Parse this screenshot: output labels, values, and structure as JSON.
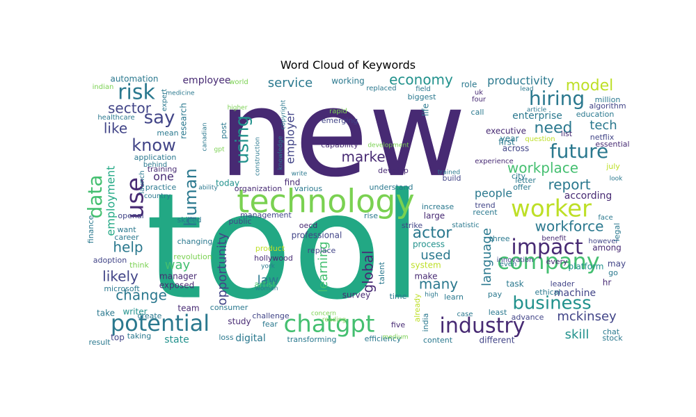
{
  "title": "Word Cloud of Keywords",
  "palette": {
    "dark": "#472a73",
    "green": "#22a884",
    "teal": "#2a788e",
    "lime": "#7ad151",
    "yellow": "#bddf26",
    "blue": "#414487",
    "lightgreen": "#44bf70",
    "midteal": "#21918c"
  },
  "words": [
    {
      "text": "new",
      "c": "dark"
    },
    {
      "text": "tool",
      "c": "green"
    },
    {
      "text": "technology",
      "c": "lime"
    },
    {
      "text": "worker",
      "c": "yellow"
    },
    {
      "text": "company",
      "c": "lightgreen"
    },
    {
      "text": "chatgpt",
      "c": "lightgreen"
    },
    {
      "text": "potential",
      "c": "teal"
    },
    {
      "text": "industry",
      "c": "dark"
    },
    {
      "text": "impact",
      "c": "dark"
    },
    {
      "text": "business",
      "c": "midteal"
    },
    {
      "text": "future",
      "c": "teal"
    },
    {
      "text": "hiring",
      "c": "teal"
    },
    {
      "text": "risk",
      "c": "teal"
    },
    {
      "text": "data",
      "c": "lightgreen"
    },
    {
      "text": "use",
      "c": "dark"
    },
    {
      "text": "know",
      "c": "blue"
    },
    {
      "text": "say",
      "c": "blue"
    },
    {
      "text": "human",
      "c": "teal"
    },
    {
      "text": "using",
      "c": "midteal"
    },
    {
      "text": "workplace",
      "c": "lightgreen"
    },
    {
      "text": "workforce",
      "c": "teal"
    },
    {
      "text": "report",
      "c": "teal"
    },
    {
      "text": "need",
      "c": "teal"
    },
    {
      "text": "model",
      "c": "yellow"
    },
    {
      "text": "economy",
      "c": "midteal"
    },
    {
      "text": "market",
      "c": "dark"
    },
    {
      "text": "change",
      "c": "teal"
    },
    {
      "text": "likely",
      "c": "blue"
    },
    {
      "text": "help",
      "c": "teal"
    },
    {
      "text": "many",
      "c": "teal"
    },
    {
      "text": "actor",
      "c": "teal"
    },
    {
      "text": "law",
      "c": "teal"
    },
    {
      "text": "mckinsey",
      "c": "blue"
    },
    {
      "text": "skill",
      "c": "midteal"
    },
    {
      "text": "like",
      "c": "blue"
    },
    {
      "text": "sector",
      "c": "blue"
    },
    {
      "text": "tech",
      "c": "teal"
    },
    {
      "text": "service",
      "c": "teal"
    },
    {
      "text": "productivity",
      "c": "teal"
    },
    {
      "text": "employment",
      "c": "green"
    },
    {
      "text": "opportunity",
      "c": "blue"
    },
    {
      "text": "learning",
      "c": "lightgreen"
    },
    {
      "text": "global",
      "c": "dark"
    },
    {
      "text": "language",
      "c": "teal"
    },
    {
      "text": "employer",
      "c": "blue"
    },
    {
      "text": "people",
      "c": "teal"
    },
    {
      "text": "according",
      "c": "dark"
    },
    {
      "text": "enterprise",
      "c": "teal"
    },
    {
      "text": "used",
      "c": "teal"
    },
    {
      "text": "way",
      "c": "lightgreen"
    },
    {
      "text": "machine",
      "c": "blue"
    },
    {
      "text": "state",
      "c": "midteal"
    },
    {
      "text": "digital",
      "c": "teal"
    },
    {
      "text": "one",
      "c": "dark"
    },
    {
      "text": "employee",
      "c": "dark"
    },
    {
      "text": "automation",
      "c": "teal"
    },
    {
      "text": "year",
      "c": "teal"
    },
    {
      "text": "across",
      "c": "blue"
    },
    {
      "text": "role",
      "c": "teal"
    },
    {
      "text": "working",
      "c": "teal"
    },
    {
      "text": "application",
      "c": "teal"
    },
    {
      "text": "research",
      "c": "teal"
    },
    {
      "text": "study",
      "c": "dark"
    },
    {
      "text": "today",
      "c": "midteal"
    },
    {
      "text": "large",
      "c": "dark"
    },
    {
      "text": "professional",
      "c": "blue"
    },
    {
      "text": "find",
      "c": "dark"
    },
    {
      "text": "survey",
      "c": "dark"
    },
    {
      "text": "make",
      "c": "dark"
    },
    {
      "text": "task",
      "c": "teal"
    },
    {
      "text": "team",
      "c": "dark"
    },
    {
      "text": "top",
      "c": "blue"
    },
    {
      "text": "take",
      "c": "teal"
    },
    {
      "text": "writer",
      "c": "midteal"
    },
    {
      "text": "manager",
      "c": "dark"
    },
    {
      "text": "exposed",
      "c": "dark"
    },
    {
      "text": "system",
      "c": "yellow"
    },
    {
      "text": "different",
      "c": "blue"
    },
    {
      "text": "process",
      "c": "midteal"
    },
    {
      "text": "may",
      "c": "blue"
    },
    {
      "text": "among",
      "c": "dark"
    },
    {
      "text": "artist",
      "c": "lightgreen"
    },
    {
      "text": "hollywood",
      "c": "dark"
    },
    {
      "text": "replace",
      "c": "blue"
    },
    {
      "text": "career",
      "c": "teal"
    },
    {
      "text": "openai",
      "c": "blue"
    },
    {
      "text": "skilled",
      "c": "teal"
    },
    {
      "text": "want",
      "c": "teal"
    },
    {
      "text": "strike",
      "c": "blue"
    },
    {
      "text": "already",
      "c": "yellow"
    },
    {
      "text": "product",
      "c": "yellow"
    },
    {
      "text": "understand",
      "c": "teal"
    },
    {
      "text": "develop",
      "c": "dark"
    },
    {
      "text": "build",
      "c": "blue"
    },
    {
      "text": "emerging",
      "c": "blue"
    },
    {
      "text": "capability",
      "c": "dark"
    },
    {
      "text": "netflix",
      "c": "blue"
    },
    {
      "text": "education",
      "c": "teal"
    },
    {
      "text": "million",
      "c": "teal"
    },
    {
      "text": "algorithm",
      "c": "blue"
    },
    {
      "text": "essential",
      "c": "dark"
    },
    {
      "text": "hr",
      "c": "dark"
    },
    {
      "text": "platform",
      "c": "midteal"
    },
    {
      "text": "every",
      "c": "dark"
    },
    {
      "text": "leader",
      "c": "blue"
    },
    {
      "text": "ethical",
      "c": "teal"
    },
    {
      "text": "pay",
      "c": "teal"
    },
    {
      "text": "least",
      "c": "teal"
    },
    {
      "text": "advance",
      "c": "blue"
    },
    {
      "text": "learn",
      "c": "teal"
    },
    {
      "text": "content",
      "c": "teal"
    },
    {
      "text": "efficiency",
      "c": "teal"
    },
    {
      "text": "five",
      "c": "dark"
    },
    {
      "text": "india",
      "c": "teal"
    },
    {
      "text": "time",
      "c": "teal"
    },
    {
      "text": "talent",
      "c": "teal"
    },
    {
      "text": "rise",
      "c": "teal"
    },
    {
      "text": "oecd",
      "c": "dark"
    },
    {
      "text": "various",
      "c": "teal"
    },
    {
      "text": "organization",
      "c": "dark"
    },
    {
      "text": "management",
      "c": "blue"
    },
    {
      "text": "public",
      "c": "blue"
    },
    {
      "text": "changing",
      "c": "teal"
    },
    {
      "text": "revolution",
      "c": "lime"
    },
    {
      "text": "think",
      "c": "lime"
    },
    {
      "text": "adoption",
      "c": "blue"
    },
    {
      "text": "microsoft",
      "c": "teal"
    },
    {
      "text": "create",
      "c": "teal"
    },
    {
      "text": "taking",
      "c": "teal"
    },
    {
      "text": "result",
      "c": "teal"
    },
    {
      "text": "consumer",
      "c": "teal"
    },
    {
      "text": "challenge",
      "c": "blue"
    },
    {
      "text": "fear",
      "c": "teal"
    },
    {
      "text": "loss",
      "c": "teal"
    },
    {
      "text": "transforming",
      "c": "teal"
    },
    {
      "text": "concern",
      "c": "lime"
    },
    {
      "text": "woman",
      "c": "teal"
    },
    {
      "text": "york",
      "c": "teal"
    },
    {
      "text": "high",
      "c": "teal"
    },
    {
      "text": "chat",
      "c": "teal"
    },
    {
      "text": "stock",
      "c": "teal"
    },
    {
      "text": "go",
      "c": "teal"
    },
    {
      "text": "however",
      "c": "blue"
    },
    {
      "text": "face",
      "c": "teal"
    },
    {
      "text": "legal",
      "c": "teal"
    },
    {
      "text": "july",
      "c": "yellow"
    },
    {
      "text": "question",
      "c": "yellow"
    },
    {
      "text": "experience",
      "c": "dark"
    },
    {
      "text": "executive",
      "c": "dark"
    },
    {
      "text": "first",
      "c": "teal"
    },
    {
      "text": "city",
      "c": "teal"
    },
    {
      "text": "list",
      "c": "dark"
    },
    {
      "text": "letter",
      "c": "teal"
    },
    {
      "text": "offer",
      "c": "teal"
    },
    {
      "text": "trend",
      "c": "blue"
    },
    {
      "text": "recent",
      "c": "teal"
    },
    {
      "text": "three",
      "c": "teal"
    },
    {
      "text": "benefit",
      "c": "dark"
    },
    {
      "text": "innovation",
      "c": "blue"
    },
    {
      "text": "even",
      "c": "teal"
    },
    {
      "text": "statistic",
      "c": "teal"
    },
    {
      "text": "case",
      "c": "teal"
    },
    {
      "text": "increase",
      "c": "teal"
    },
    {
      "text": "trained",
      "c": "teal"
    },
    {
      "text": "look",
      "c": "teal"
    },
    {
      "text": "article",
      "c": "teal"
    },
    {
      "text": "lead",
      "c": "teal"
    },
    {
      "text": "call",
      "c": "teal"
    },
    {
      "text": "four",
      "c": "dark"
    },
    {
      "text": "uk",
      "c": "dark"
    },
    {
      "text": "biggest",
      "c": "teal"
    },
    {
      "text": "life",
      "c": "teal"
    },
    {
      "text": "field",
      "c": "teal"
    },
    {
      "text": "replaced",
      "c": "teal"
    },
    {
      "text": "world",
      "c": "lime"
    },
    {
      "text": "indian",
      "c": "lime"
    },
    {
      "text": "medicine",
      "c": "teal"
    },
    {
      "text": "expert",
      "c": "teal"
    },
    {
      "text": "healthcare",
      "c": "teal"
    },
    {
      "text": "mean",
      "c": "teal"
    },
    {
      "text": "canadian",
      "c": "teal"
    },
    {
      "text": "behind",
      "c": "teal"
    },
    {
      "text": "training",
      "c": "dark"
    },
    {
      "text": "launch",
      "c": "teal"
    },
    {
      "text": "practice",
      "c": "teal"
    },
    {
      "text": "country",
      "c": "teal"
    },
    {
      "text": "ability",
      "c": "teal"
    },
    {
      "text": "finance",
      "c": "teal"
    },
    {
      "text": "post",
      "c": "teal"
    },
    {
      "text": "higher",
      "c": "lime"
    },
    {
      "text": "copyright",
      "c": "teal"
    },
    {
      "text": "rapid",
      "c": "lime"
    },
    {
      "text": "knowledge",
      "c": "teal"
    },
    {
      "text": "construction",
      "c": "teal"
    },
    {
      "text": "write",
      "c": "teal"
    },
    {
      "text": "development",
      "c": "lime"
    },
    {
      "text": "medium",
      "c": "lime"
    },
    {
      "text": "reading",
      "c": "lime"
    },
    {
      "text": "gpt",
      "c": "lime"
    }
  ]
}
